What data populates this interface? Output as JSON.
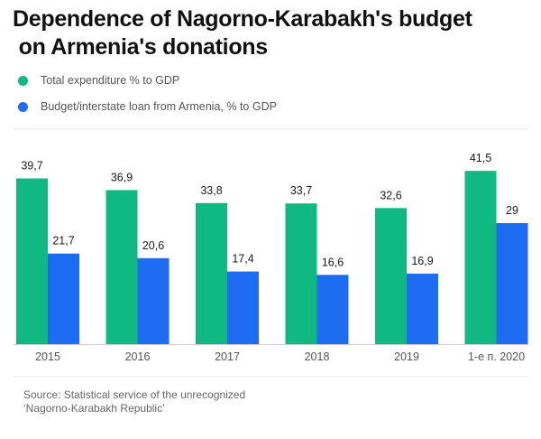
{
  "title": "Dependence of Nagorno-Karabakh's budget\n on Armenia's donations",
  "legend": [
    {
      "label": "Total expenditure % to GDP",
      "color": "#10b981"
    },
    {
      "label": "Budget/interstate loan from Armenia, % to GDP",
      "color": "#1d6cf2"
    }
  ],
  "source": {
    "line1": "Source: Statistical service of the unrecognized",
    "line2": "‘Nagorno-Karabakh Republic’"
  },
  "chart_data": {
    "type": "bar",
    "categories": [
      "2015",
      "2016",
      "2017",
      "2018",
      "2019",
      "1-e п. 2020"
    ],
    "series": [
      {
        "name": "Total expenditure % to GDP",
        "color": "#10b981",
        "values": [
          39.7,
          36.9,
          33.8,
          33.7,
          32.6,
          41.5
        ],
        "labels": [
          "39,7",
          "36,9",
          "33,8",
          "33,7",
          "32,6",
          "41,5"
        ]
      },
      {
        "name": "Budget/interstate loan from Armenia, % to GDP",
        "color": "#1d6cf2",
        "values": [
          21.7,
          20.6,
          17.4,
          16.6,
          16.9,
          29
        ],
        "labels": [
          "21,7",
          "20,6",
          "17,4",
          "16,6",
          "16,9",
          "29"
        ]
      }
    ],
    "ylim": [
      0,
      45
    ],
    "grid": false,
    "legend_position": "top-left"
  }
}
